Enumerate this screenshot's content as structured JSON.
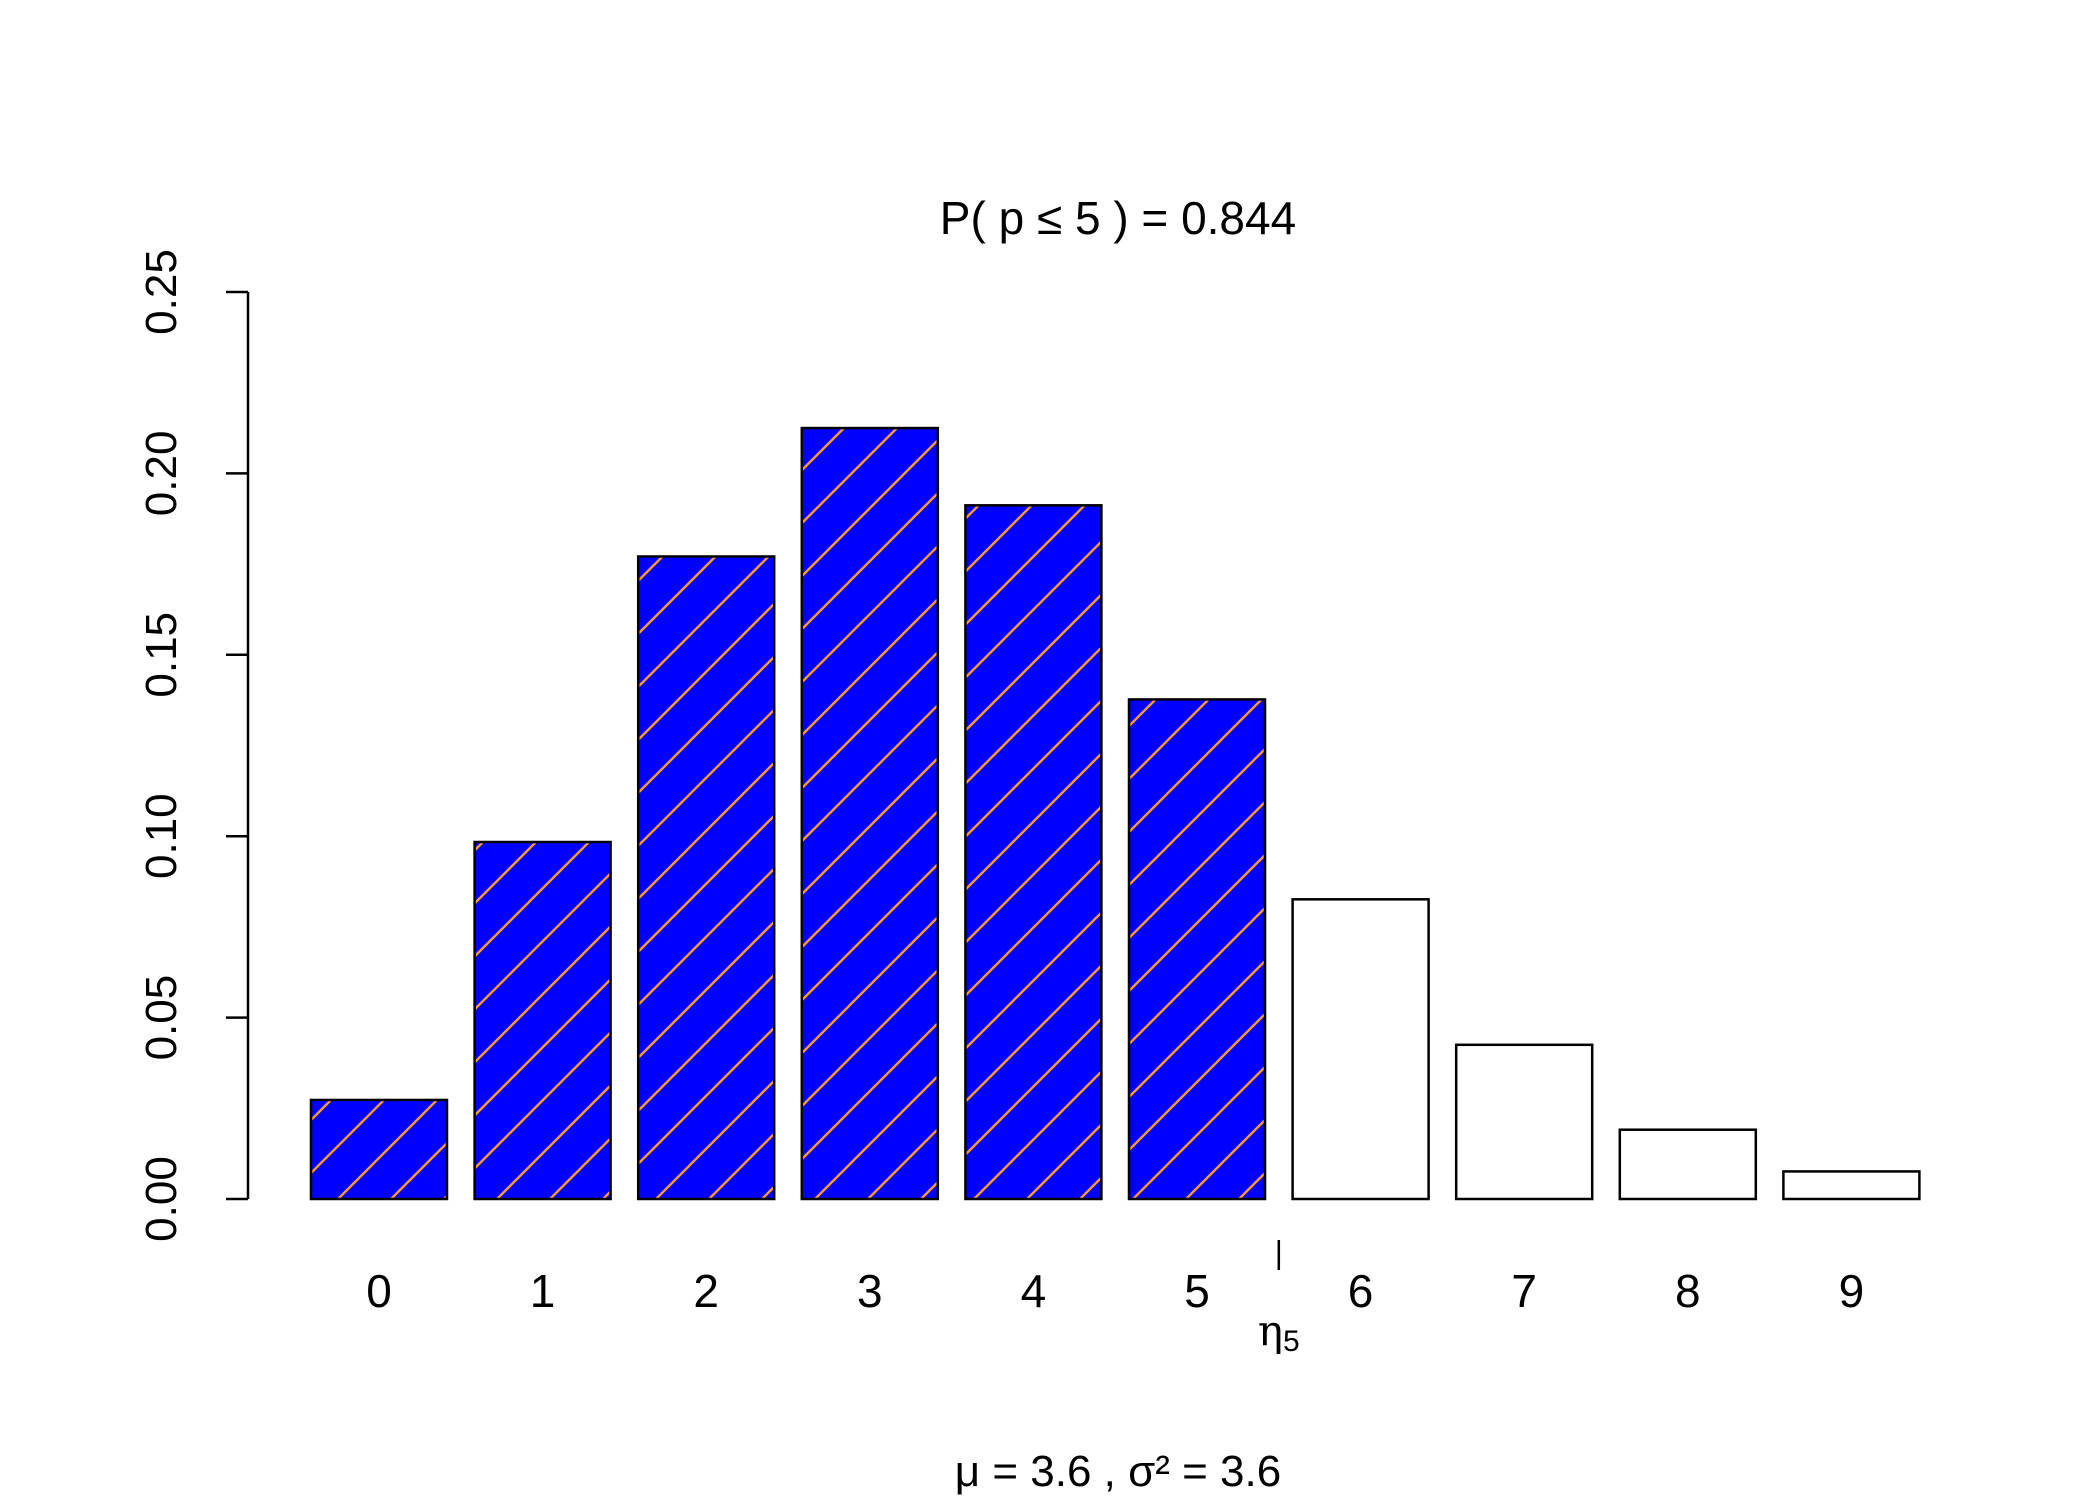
{
  "chart_data": {
    "type": "bar",
    "title": "P(  p  ≤  5 ) =  0.844",
    "xlabel": "μ =  3.6 , σ² =  3.6",
    "ylabel": "",
    "categories": [
      "0",
      "1",
      "2",
      "3",
      "4",
      "5",
      "6",
      "7",
      "8",
      "9"
    ],
    "values": [
      0.0273,
      0.0984,
      0.1771,
      0.2125,
      0.1912,
      0.1377,
      0.0826,
      0.0425,
      0.0191,
      0.0076
    ],
    "highlight_through_index": 5,
    "ylim": [
      0,
      0.25
    ],
    "yticks": [
      0,
      0.05,
      0.1,
      0.15,
      0.2,
      0.25
    ],
    "ytick_labels": [
      "0.00",
      "0.05",
      "0.10",
      "0.15",
      "0.20",
      "0.25"
    ],
    "grid": false,
    "marker": {
      "label": "η",
      "subscript": "5",
      "after_category": "5"
    },
    "colors": {
      "highlight_fill": "#0000ff",
      "hatch": "#ff9a2e",
      "plain_fill": "#ffffff",
      "outline": "#000000"
    }
  }
}
